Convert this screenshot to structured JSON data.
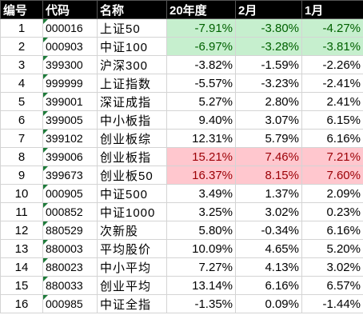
{
  "headers": [
    "编号",
    "代码",
    "名称",
    "20年度",
    "2月",
    "1月"
  ],
  "rows": [
    {
      "idx": "1",
      "code": "000016",
      "name": "上证50",
      "y2020": "-7.91%",
      "feb": "-3.80%",
      "jan": "-4.27%",
      "hl": "green"
    },
    {
      "idx": "2",
      "code": "000903",
      "name": "中证100",
      "y2020": "-6.97%",
      "feb": "-3.28%",
      "jan": "-3.81%",
      "hl": "green"
    },
    {
      "idx": "3",
      "code": "399300",
      "name": "沪深300",
      "y2020": "-3.82%",
      "feb": "-1.59%",
      "jan": "-2.26%",
      "hl": ""
    },
    {
      "idx": "4",
      "code": "999999",
      "name": "上证指数",
      "y2020": "-5.57%",
      "feb": "-3.23%",
      "jan": "-2.41%",
      "hl": ""
    },
    {
      "idx": "5",
      "code": "399001",
      "name": "深证成指",
      "y2020": "5.27%",
      "feb": "2.80%",
      "jan": "2.41%",
      "hl": ""
    },
    {
      "idx": "6",
      "code": "399005",
      "name": "中小板指",
      "y2020": "9.40%",
      "feb": "3.07%",
      "jan": "6.15%",
      "hl": ""
    },
    {
      "idx": "7",
      "code": "399102",
      "name": "创业板综",
      "y2020": "12.31%",
      "feb": "5.79%",
      "jan": "6.16%",
      "hl": ""
    },
    {
      "idx": "8",
      "code": "399006",
      "name": "创业板指",
      "y2020": "15.21%",
      "feb": "7.46%",
      "jan": "7.21%",
      "hl": "red"
    },
    {
      "idx": "9",
      "code": "399673",
      "name": "创业板50",
      "y2020": "16.37%",
      "feb": "8.15%",
      "jan": "7.60%",
      "hl": "red"
    },
    {
      "idx": "10",
      "code": "000905",
      "name": "中证500",
      "y2020": "3.49%",
      "feb": "1.37%",
      "jan": "2.09%",
      "hl": ""
    },
    {
      "idx": "11",
      "code": "000852",
      "name": "中证1000",
      "y2020": "3.25%",
      "feb": "3.02%",
      "jan": "0.23%",
      "hl": ""
    },
    {
      "idx": "12",
      "code": "880529",
      "name": "次新股",
      "y2020": "5.80%",
      "feb": "-0.34%",
      "jan": "6.16%",
      "hl": ""
    },
    {
      "idx": "13",
      "code": "880003",
      "name": "平均股价",
      "y2020": "10.09%",
      "feb": "4.65%",
      "jan": "5.20%",
      "hl": ""
    },
    {
      "idx": "14",
      "code": "880023",
      "name": "中小平均",
      "y2020": "7.27%",
      "feb": "4.13%",
      "jan": "3.02%",
      "hl": ""
    },
    {
      "idx": "15",
      "code": "880033",
      "name": "创业平均",
      "y2020": "13.14%",
      "feb": "6.16%",
      "jan": "6.57%",
      "hl": ""
    },
    {
      "idx": "16",
      "code": "000985",
      "name": "中证全指",
      "y2020": "-1.35%",
      "feb": "0.09%",
      "jan": "-1.44%",
      "hl": ""
    }
  ],
  "colors": {
    "header_bg": "#000000",
    "header_text": "#ffffff",
    "green_fill": "#c6efce",
    "green_text": "#006100",
    "red_fill": "#ffc7ce",
    "red_text": "#9c0006",
    "text_marker": "#1e7b3a"
  },
  "icons": {
    "code_cell_marker": "green-triangle-icon"
  }
}
